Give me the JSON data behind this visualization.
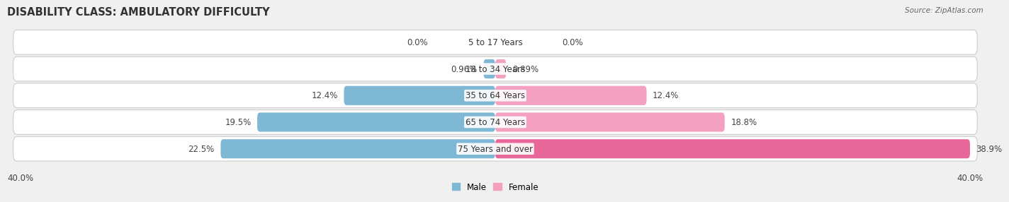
{
  "title": "DISABILITY CLASS: AMBULATORY DIFFICULTY",
  "source": "Source: ZipAtlas.com",
  "categories": [
    "5 to 17 Years",
    "18 to 34 Years",
    "35 to 64 Years",
    "65 to 74 Years",
    "75 Years and over"
  ],
  "male_values": [
    0.0,
    0.96,
    12.4,
    19.5,
    22.5
  ],
  "female_values": [
    0.0,
    0.89,
    12.4,
    18.8,
    38.9
  ],
  "male_labels": [
    "0.0%",
    "0.96%",
    "12.4%",
    "19.5%",
    "22.5%"
  ],
  "female_labels": [
    "0.0%",
    "0.89%",
    "12.4%",
    "18.8%",
    "38.9%"
  ],
  "male_color": "#7eb8d4",
  "female_color": "#f4a0c0",
  "female_color_last": "#e8689a",
  "axis_label_left": "40.0%",
  "axis_label_right": "40.0%",
  "xlim": 40.0,
  "background_color": "#f0f0f0",
  "row_bg_color": "#ffffff",
  "title_fontsize": 10.5,
  "label_fontsize": 8.5,
  "cat_fontsize": 8.5
}
